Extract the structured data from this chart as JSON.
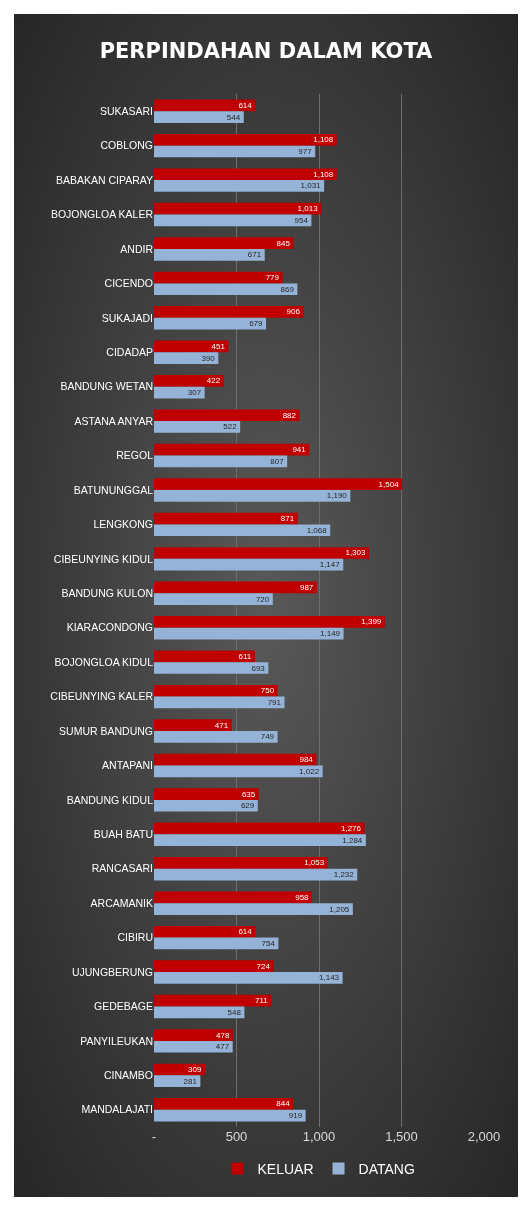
{
  "chart_data": {
    "type": "bar",
    "orientation": "horizontal",
    "title": "PERPINDAHAN DALAM KOTA",
    "categories": [
      "SUKASARI",
      "COBLONG",
      "BABAKAN CIPARAY",
      "BOJONGLOA KALER",
      "ANDIR",
      "CICENDO",
      "SUKAJADI",
      "CIDADAP",
      "BANDUNG WETAN",
      "ASTANA ANYAR",
      "REGOL",
      "BATUNUNGGAL",
      "LENGKONG",
      "CIBEUNYING KIDUL",
      "BANDUNG KULON",
      "KIARACONDONG",
      "BOJONGLOA KIDUL",
      "CIBEUNYING KALER",
      "SUMUR BANDUNG",
      "ANTAPANI",
      "BANDUNG KIDUL",
      "BUAH BATU",
      "RANCASARI",
      "ARCAMANIK",
      "CIBIRU",
      "UJUNGBERUNG",
      "GEDEBAGE",
      "PANYILEUKAN",
      "CINAMBO",
      "MANDALAJATI"
    ],
    "series": [
      {
        "name": "KELUAR",
        "color": "#c00000",
        "values": [
          614,
          1108,
          1108,
          1013,
          845,
          779,
          906,
          451,
          422,
          882,
          941,
          1504,
          871,
          1303,
          987,
          1399,
          611,
          750,
          471,
          984,
          635,
          1276,
          1053,
          958,
          614,
          724,
          711,
          478,
          309,
          844
        ],
        "value_labels": [
          "614",
          "1,108",
          "1,108",
          "1,013",
          "845",
          "779",
          "906",
          "451",
          "422",
          "882",
          "941",
          "1,504",
          "871",
          "1,303",
          "987",
          "1,399",
          "611",
          "750",
          "471",
          "984",
          "635",
          "1,276",
          "1,053",
          "958",
          "614",
          "724",
          "711",
          "478",
          "309",
          "844"
        ]
      },
      {
        "name": "DATANG",
        "color": "#95b3d7",
        "values": [
          544,
          977,
          1031,
          954,
          671,
          869,
          679,
          390,
          307,
          522,
          807,
          1190,
          1068,
          1147,
          720,
          1149,
          693,
          791,
          749,
          1022,
          629,
          1284,
          1232,
          1205,
          754,
          1143,
          548,
          477,
          281,
          919
        ],
        "value_labels": [
          "544",
          "977",
          "1,031",
          "954",
          "671",
          "869",
          "679",
          "390",
          "307",
          "522",
          "807",
          "1,190",
          "1,068",
          "1,147",
          "720",
          "1,149",
          "693",
          "791",
          "749",
          "1,022",
          "629",
          "1,284",
          "1,232",
          "1,205",
          "754",
          "1,143",
          "548",
          "477",
          "281",
          "919"
        ]
      }
    ],
    "xlim": [
      0,
      2000
    ],
    "xticks": [
      {
        "value": 0,
        "label": "-"
      },
      {
        "value": 500,
        "label": "500"
      },
      {
        "value": 1000,
        "label": "1,000"
      },
      {
        "value": 1500,
        "label": "1,500"
      },
      {
        "value": 2000,
        "label": "2,000"
      }
    ],
    "grid": "x",
    "legend": "bottom"
  }
}
